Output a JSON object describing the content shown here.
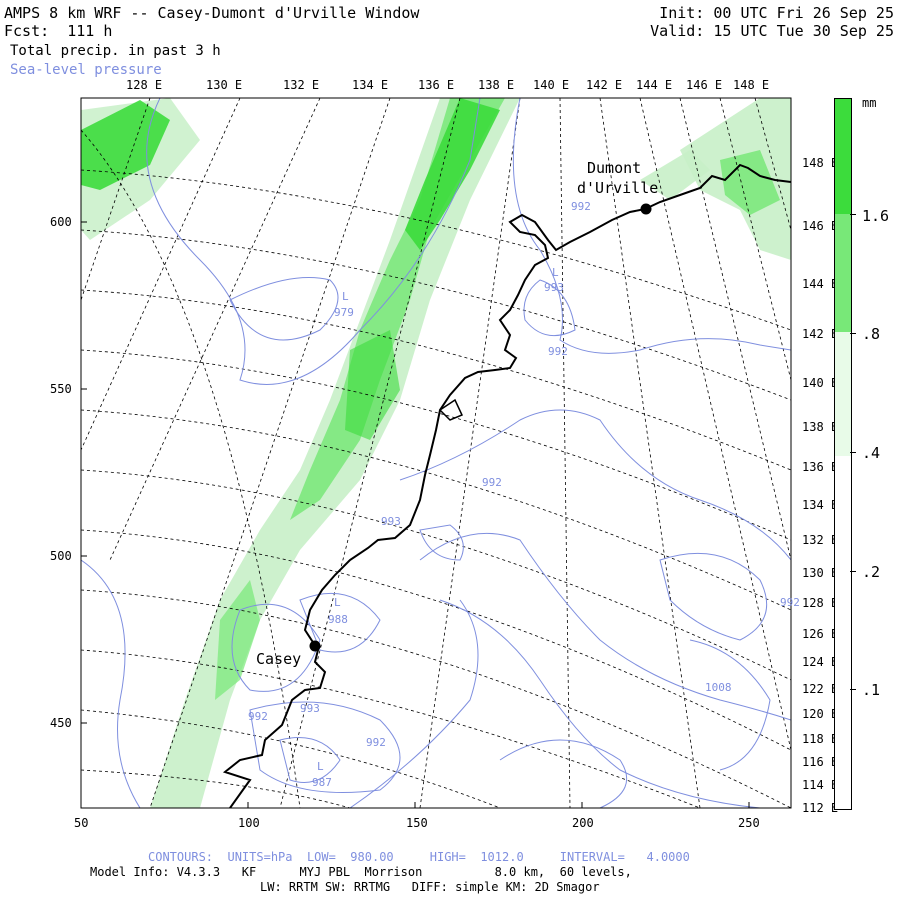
{
  "header": {
    "title": "AMPS 8 km WRF -- Casey-Dumont d'Urville Window",
    "forecast": "Fcst:  111 h",
    "field_primary": "Total precip. in past 3 h",
    "field_secondary": "Sea-level pressure",
    "init": "Init: 00 UTC Fri 26 Sep 25",
    "valid": "Valid: 15 UTC Tue 30 Sep 25"
  },
  "top_lon_labels": [
    "128 E",
    "130 E",
    "132 E",
    "134 E",
    "136 E",
    "138 E",
    "140 E",
    "142 E",
    "144 E",
    "146 E",
    "148 E"
  ],
  "right_lon_labels": [
    "148 E",
    "146 E",
    "144 E",
    "142 E",
    "140 E",
    "138 E",
    "136 E",
    "134 E",
    "132 E",
    "130 E",
    "128 E",
    "126 E",
    "124 E",
    "122 E",
    "120 E",
    "118 E",
    "116 E",
    "114 E",
    "112 E"
  ],
  "x_axis_labels": [
    "50",
    "100",
    "150",
    "200",
    "250"
  ],
  "y_axis_labels": [
    "600",
    "550",
    "500",
    "450"
  ],
  "stations": [
    {
      "name_line1": "Dumont",
      "name_line2": "d'Urville"
    },
    {
      "name_line1": "Casey",
      "name_line2": ""
    }
  ],
  "contour_labels": [
    "992",
    "993",
    "992",
    "979",
    "L",
    "L",
    "992",
    "993",
    "L",
    "988",
    "992",
    "993",
    "992",
    "L",
    "987",
    "1008",
    "992"
  ],
  "colorbar": {
    "unit": "mm",
    "labels": [
      "1.6",
      ".8",
      ".4",
      ".2",
      ".1"
    ],
    "colors": [
      "#3cdc3c",
      "#78e878",
      "#e8fbe8",
      "#ffffff"
    ]
  },
  "footer": {
    "contours": "CONTOURS:  UNITS=hPa  LOW=  980.00     HIGH=  1012.0     INTERVAL=   4.0000",
    "model": "Model Info: V4.3.3   KF      MYJ PBL  Morrison          8.0 km,  60 levels,",
    "physics": "LW: RRTM SW: RRTMG   DIFF: simple KM: 2D Smagor"
  },
  "colors": {
    "contour": "#7f8fdf",
    "coast": "#000000",
    "precip_strong": "#3cdc3c",
    "precip_light": "#c8f0c8"
  }
}
